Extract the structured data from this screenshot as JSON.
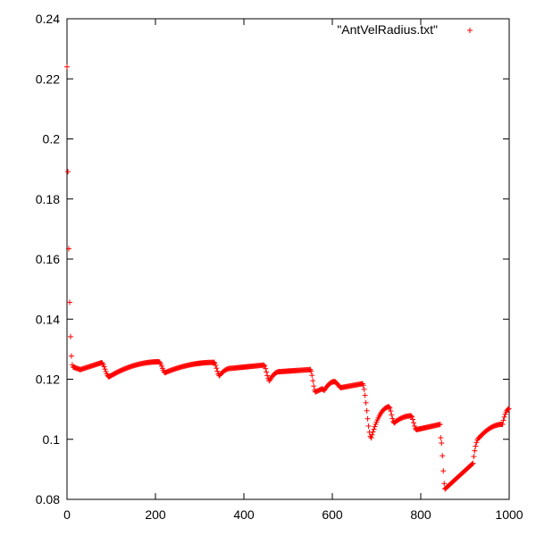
{
  "chart_data": {
    "type": "scatter",
    "title": "",
    "xlabel": "",
    "ylabel": "",
    "xlim": [
      0,
      1000
    ],
    "ylim": [
      0.08,
      0.24
    ],
    "x_ticks": [
      "0",
      "200",
      "400",
      "600",
      "800",
      "1000"
    ],
    "y_ticks": [
      "0.08",
      "0.1",
      "0.12",
      "0.14",
      "0.16",
      "0.18",
      "0.2",
      "0.22",
      "0.24"
    ],
    "grid": false,
    "legend_position": "top-right",
    "series": [
      {
        "name": "\"AntVelRadius.txt\"",
        "color": "#ff0000",
        "marker": "plus",
        "segments": [
          {
            "x_start": 0,
            "x_end": 15,
            "y_start": 0.224,
            "y_end": 0.124,
            "shape": "decay"
          },
          {
            "x_start": 15,
            "x_end": 30,
            "y_start": 0.124,
            "y_end": 0.1232,
            "shape": "linear"
          },
          {
            "x_start": 30,
            "x_end": 78,
            "y_start": 0.1232,
            "y_end": 0.1255,
            "shape": "linear"
          },
          {
            "x_start": 78,
            "x_end": 95,
            "y_start": 0.1255,
            "y_end": 0.1208,
            "shape": "drop"
          },
          {
            "x_start": 95,
            "x_end": 208,
            "y_start": 0.1208,
            "y_end": 0.1258,
            "shape": "rise"
          },
          {
            "x_start": 208,
            "x_end": 222,
            "y_start": 0.1258,
            "y_end": 0.1222,
            "shape": "drop"
          },
          {
            "x_start": 222,
            "x_end": 332,
            "y_start": 0.1222,
            "y_end": 0.1256,
            "shape": "rise"
          },
          {
            "x_start": 332,
            "x_end": 345,
            "y_start": 0.1256,
            "y_end": 0.1212,
            "shape": "drop"
          },
          {
            "x_start": 345,
            "x_end": 370,
            "y_start": 0.1212,
            "y_end": 0.1236,
            "shape": "rise"
          },
          {
            "x_start": 370,
            "x_end": 445,
            "y_start": 0.1236,
            "y_end": 0.1247,
            "shape": "linear"
          },
          {
            "x_start": 445,
            "x_end": 458,
            "y_start": 0.1247,
            "y_end": 0.1195,
            "shape": "drop"
          },
          {
            "x_start": 458,
            "x_end": 480,
            "y_start": 0.1195,
            "y_end": 0.1225,
            "shape": "rise"
          },
          {
            "x_start": 480,
            "x_end": 550,
            "y_start": 0.1225,
            "y_end": 0.1232,
            "shape": "linear"
          },
          {
            "x_start": 550,
            "x_end": 562,
            "y_start": 0.1232,
            "y_end": 0.1158,
            "shape": "drop"
          },
          {
            "x_start": 562,
            "x_end": 577,
            "y_start": 0.1158,
            "y_end": 0.1168,
            "shape": "linear"
          },
          {
            "x_start": 577,
            "x_end": 582,
            "y_start": 0.1168,
            "y_end": 0.1163,
            "shape": "linear"
          },
          {
            "x_start": 582,
            "x_end": 605,
            "y_start": 0.1163,
            "y_end": 0.1192,
            "shape": "rise"
          },
          {
            "x_start": 605,
            "x_end": 620,
            "y_start": 0.1192,
            "y_end": 0.1172,
            "shape": "drop"
          },
          {
            "x_start": 620,
            "x_end": 668,
            "y_start": 0.1172,
            "y_end": 0.1185,
            "shape": "linear"
          },
          {
            "x_start": 668,
            "x_end": 688,
            "y_start": 0.1185,
            "y_end": 0.1005,
            "shape": "drop"
          },
          {
            "x_start": 688,
            "x_end": 728,
            "y_start": 0.1005,
            "y_end": 0.1108,
            "shape": "rise"
          },
          {
            "x_start": 728,
            "x_end": 740,
            "y_start": 0.1108,
            "y_end": 0.1055,
            "shape": "drop"
          },
          {
            "x_start": 740,
            "x_end": 778,
            "y_start": 0.1055,
            "y_end": 0.1078,
            "shape": "rise"
          },
          {
            "x_start": 778,
            "x_end": 790,
            "y_start": 0.1078,
            "y_end": 0.1032,
            "shape": "drop"
          },
          {
            "x_start": 790,
            "x_end": 845,
            "y_start": 0.1032,
            "y_end": 0.105,
            "shape": "linear"
          },
          {
            "x_start": 845,
            "x_end": 855,
            "y_start": 0.1005,
            "y_end": 0.0835,
            "shape": "drop"
          },
          {
            "x_start": 855,
            "x_end": 918,
            "y_start": 0.0835,
            "y_end": 0.092,
            "shape": "linear"
          },
          {
            "x_start": 918,
            "x_end": 932,
            "y_start": 0.092,
            "y_end": 0.1005,
            "shape": "rise"
          },
          {
            "x_start": 932,
            "x_end": 985,
            "y_start": 0.1005,
            "y_end": 0.105,
            "shape": "rise"
          },
          {
            "x_start": 985,
            "x_end": 1000,
            "y_start": 0.105,
            "y_end": 0.1102,
            "shape": "rise"
          }
        ]
      }
    ]
  }
}
